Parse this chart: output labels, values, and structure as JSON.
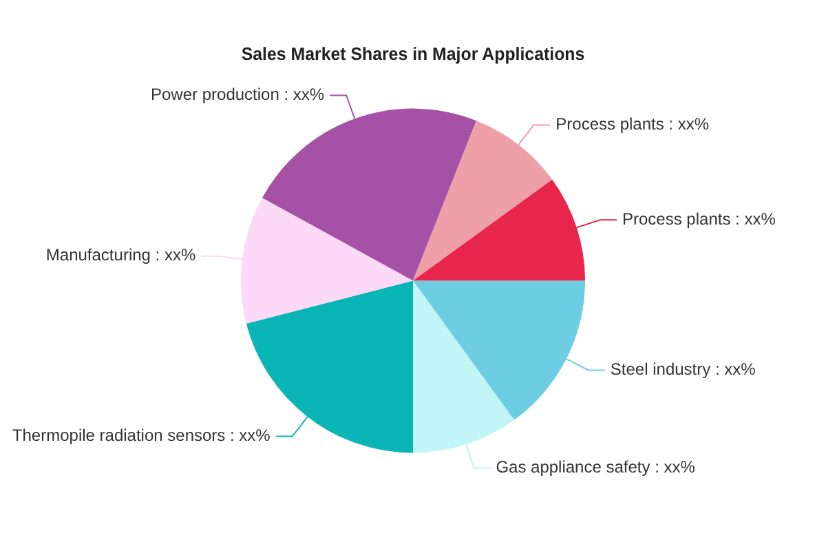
{
  "chart_data": {
    "type": "pie",
    "title": "Sales Market Shares in Major Applications",
    "categories": [
      "Steel industry",
      "Gas appliance safety",
      "Thermopile radiation sensors",
      "Manufacturing",
      "Power production",
      "Process plants",
      "Process plants"
    ],
    "values": [
      15,
      10,
      21,
      12,
      23,
      9,
      10
    ],
    "value_labels": [
      "xx%",
      "xx%",
      "xx%",
      "xx%",
      "xx%",
      "xx%",
      "xx%"
    ],
    "colors": [
      "#6dcde3",
      "#c2f5f7",
      "#0ab5b5",
      "#fcd9f7",
      "#a552a6",
      "#ef9fa8",
      "#e8254a"
    ],
    "legend": false
  }
}
